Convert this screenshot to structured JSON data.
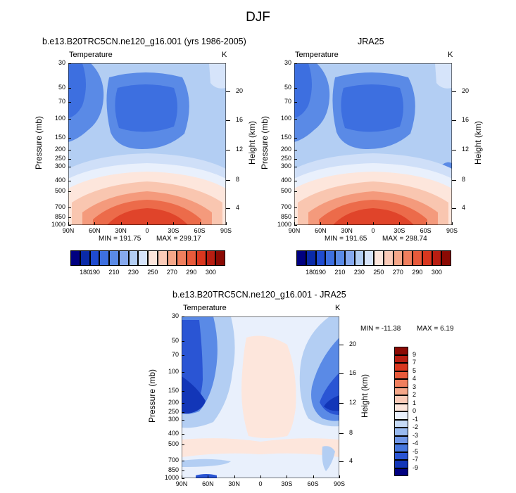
{
  "figure": {
    "title": "DJF"
  },
  "chart_data": [
    {
      "type": "heatmap",
      "title": "b.e13.B20TRC5CN.ne120_g16.001 (yrs 1986-2005)",
      "field_label": "Temperature",
      "units": "K",
      "xlabel": "",
      "ylabel": "Pressure (mb)",
      "ylabel_right": "Height (km)",
      "x_ticks": [
        "90N",
        "60N",
        "30N",
        "0",
        "30S",
        "60S",
        "90S"
      ],
      "y_ticks": [
        "30",
        "50",
        "70",
        "100",
        "150",
        "200",
        "250",
        "300",
        "400",
        "500",
        "700",
        "850",
        "1000"
      ],
      "y_right_ticks": [
        "20",
        "16",
        "12",
        "8",
        "4"
      ],
      "min_label": "MIN = 191.75",
      "max_label": "MAX = 299.17",
      "colorbar_labels": [
        "180",
        "190",
        "210",
        "230",
        "250",
        "270",
        "290",
        "300"
      ]
    },
    {
      "type": "heatmap",
      "title": "JRA25",
      "field_label": "Temperature",
      "units": "K",
      "xlabel": "",
      "ylabel": "Pressure (mb)",
      "ylabel_right": "Height (km)",
      "x_ticks": [
        "90N",
        "60N",
        "30N",
        "0",
        "30S",
        "60S",
        "90S"
      ],
      "y_ticks": [
        "30",
        "50",
        "70",
        "100",
        "150",
        "200",
        "250",
        "300",
        "400",
        "500",
        "700",
        "850",
        "1000"
      ],
      "y_right_ticks": [
        "20",
        "16",
        "12",
        "8",
        "4"
      ],
      "min_label": "MIN = 191.65",
      "max_label": "MAX = 298.74",
      "colorbar_labels": [
        "180",
        "190",
        "210",
        "230",
        "250",
        "270",
        "290",
        "300"
      ]
    },
    {
      "type": "heatmap",
      "title": "b.e13.B20TRC5CN.ne120_g16.001 - JRA25",
      "field_label": "Temperature",
      "units": "K",
      "xlabel": "",
      "ylabel": "Pressure (mb)",
      "ylabel_right": "Height (km)",
      "x_ticks": [
        "90N",
        "60N",
        "30N",
        "0",
        "30S",
        "60S",
        "90S"
      ],
      "y_ticks": [
        "30",
        "50",
        "70",
        "100",
        "150",
        "200",
        "250",
        "300",
        "400",
        "500",
        "700",
        "850",
        "1000"
      ],
      "y_right_ticks": [
        "20",
        "16",
        "12",
        "8",
        "4"
      ],
      "min_label": "MIN = -11.38",
      "max_label": "MAX =   6.19",
      "colorbar_labels": [
        "9",
        "7",
        "5",
        "4",
        "3",
        "2",
        "1",
        "0",
        "-1",
        "-2",
        "-3",
        "-4",
        "-5",
        "-7",
        "-9"
      ]
    }
  ]
}
